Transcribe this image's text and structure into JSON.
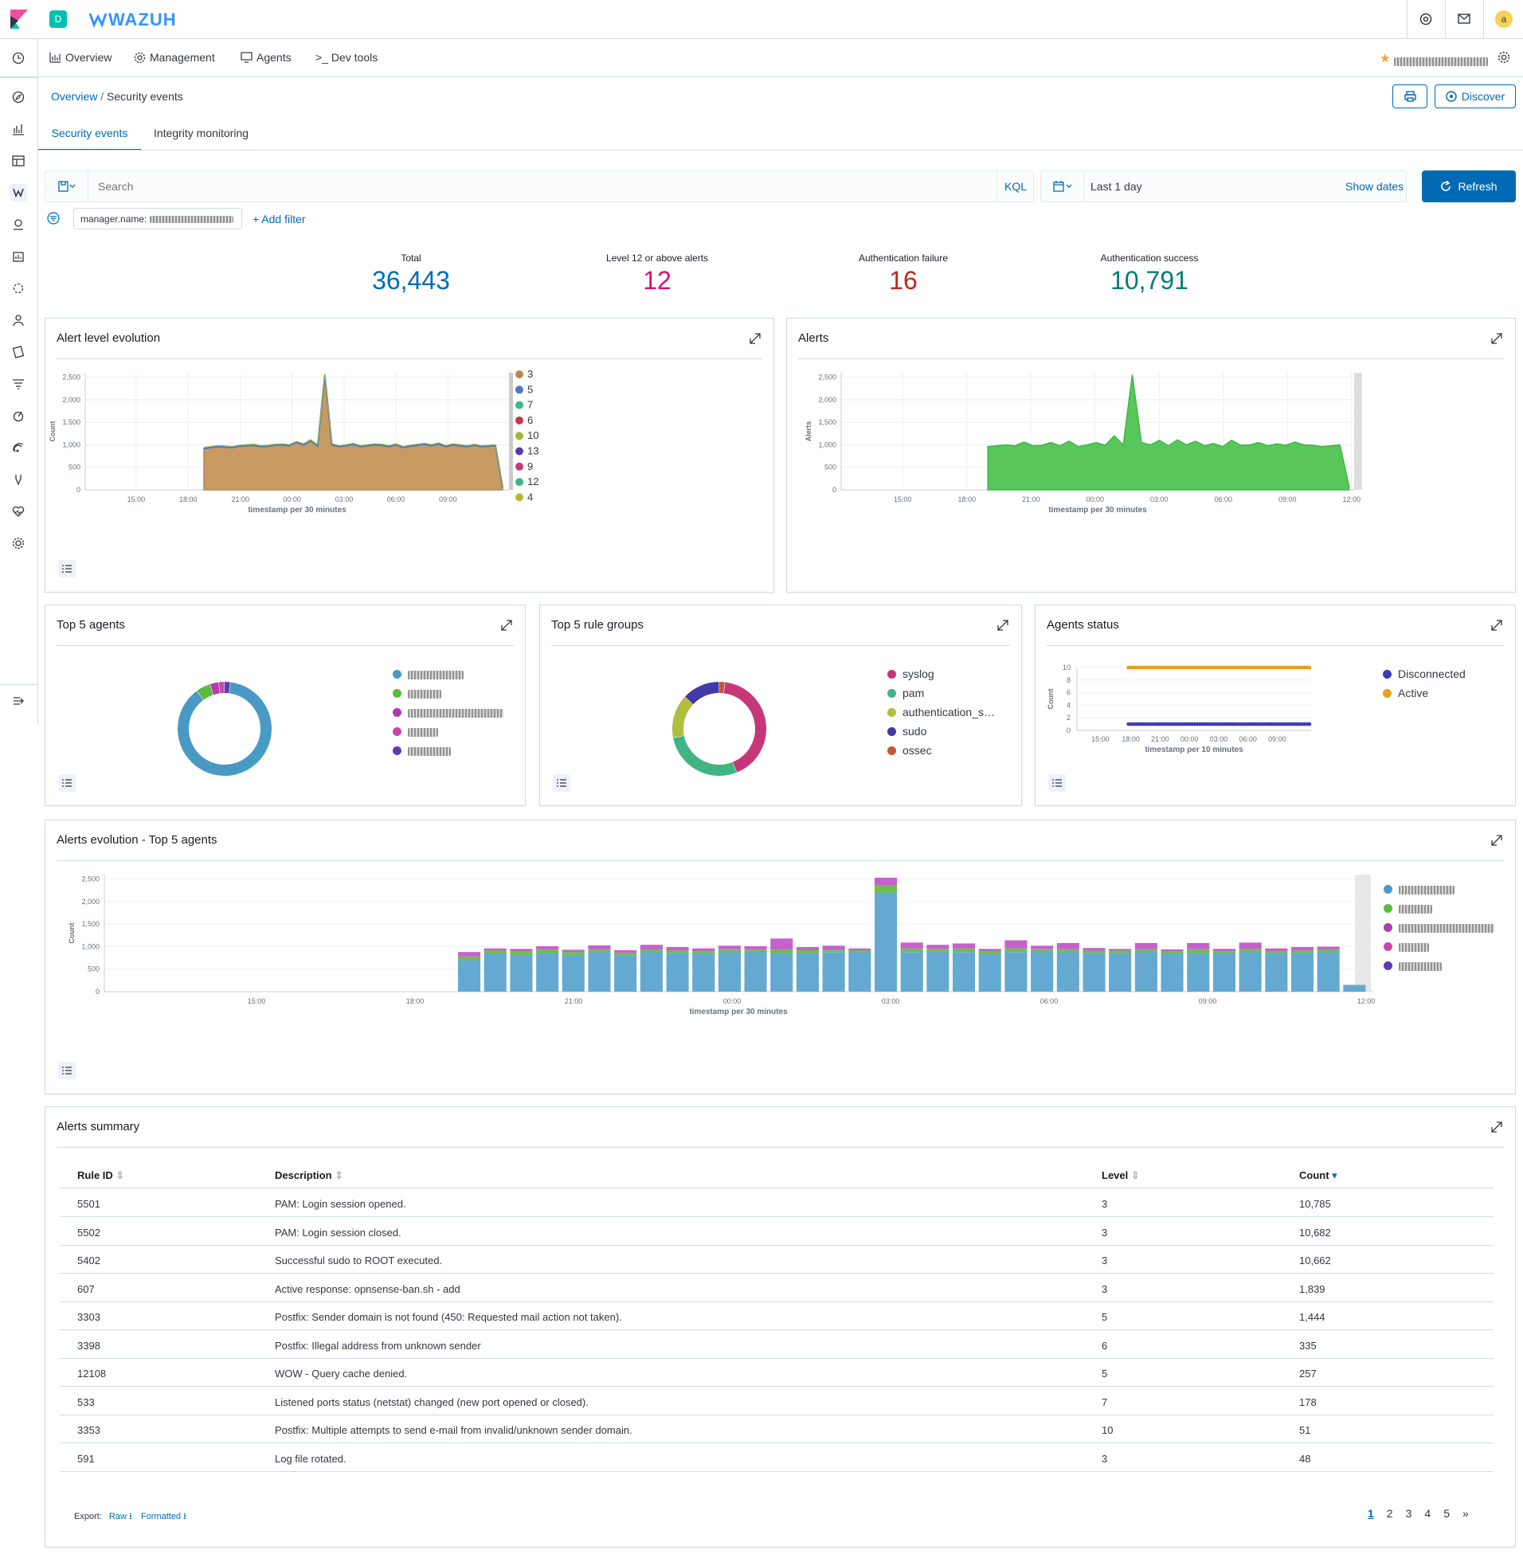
{
  "topbar": {
    "space_letter": "D",
    "logo_text": "WAZUH",
    "avatar_letter": "a"
  },
  "nav": {
    "items": [
      {
        "label": "Overview"
      },
      {
        "label": "Management"
      },
      {
        "label": "Agents"
      },
      {
        "label": ">_ Dev tools"
      }
    ]
  },
  "breadcrumb": {
    "parent": "Overview",
    "current": "Security events"
  },
  "actions": {
    "discover_label": "Discover"
  },
  "tabs": [
    {
      "label": "Security events",
      "active": true
    },
    {
      "label": "Integrity monitoring",
      "active": false
    }
  ],
  "search": {
    "placeholder": "Search",
    "kql": "KQL",
    "time_range": "Last 1 day",
    "show_dates": "Show dates",
    "refresh": "Refresh"
  },
  "filter": {
    "label": "manager.name:",
    "add_filter": "+ Add filter"
  },
  "stats": [
    {
      "label": "Total",
      "value": "36,443",
      "color": "#006bb4"
    },
    {
      "label": "Level 12 or above alerts",
      "value": "12",
      "color": "#dd0a73"
    },
    {
      "label": "Authentication failure",
      "value": "16",
      "color": "#bd271e"
    },
    {
      "label": "Authentication success",
      "value": "10,791",
      "color": "#017d73"
    }
  ],
  "panels": {
    "alert_level": {
      "title": "Alert level evolution"
    },
    "alerts": {
      "title": "Alerts"
    },
    "top_agents": {
      "title": "Top 5 agents"
    },
    "top_rules": {
      "title": "Top 5 rule groups"
    },
    "agents_status": {
      "title": "Agents status"
    },
    "alerts_evolution": {
      "title": "Alerts evolution - Top 5 agents"
    },
    "summary": {
      "title": "Alerts summary"
    }
  },
  "chart_data": [
    {
      "type": "area",
      "title": "Alert level evolution",
      "xlabel": "timestamp per 30 minutes",
      "ylabel": "Count",
      "ylim": [
        0,
        2600
      ],
      "yticks": [
        "2,500",
        "2,000",
        "1,500",
        "1,000",
        "500",
        "0"
      ],
      "xticks": [
        "15:00",
        "18:00",
        "21:00",
        "00:00",
        "03:00",
        "06:00",
        "09:00"
      ],
      "legend": [
        "3",
        "5",
        "7",
        "6",
        "10",
        "13",
        "9",
        "12",
        "4"
      ],
      "legend_colors": [
        "#b9894e",
        "#4b79c4",
        "#3cba91",
        "#c8374f",
        "#a2b83a",
        "#5a3aa8",
        "#c33c73",
        "#3fb58a",
        "#b6b838"
      ],
      "values": [
        920,
        940,
        960,
        950,
        940,
        970,
        980,
        990,
        960,
        970,
        990,
        1000,
        980,
        1050,
        1000,
        1090,
        980,
        2550,
        1000,
        960,
        980,
        1010,
        960,
        980,
        1000,
        990,
        960,
        1000,
        940,
        970,
        990,
        1010,
        980,
        1020,
        960,
        1000,
        980,
        960,
        990,
        960,
        970,
        980,
        60
      ]
    },
    {
      "type": "area",
      "title": "Alerts",
      "xlabel": "timestamp per 30 minutes",
      "ylabel": "Alerts",
      "ylim": [
        0,
        2600
      ],
      "yticks": [
        "2,500",
        "2,000",
        "1,500",
        "1,000",
        "500",
        "0"
      ],
      "xticks": [
        "15:00",
        "18:00",
        "21:00",
        "00:00",
        "03:00",
        "06:00",
        "09:00",
        "12:00"
      ],
      "values": [
        960,
        980,
        1000,
        980,
        1060,
        980,
        990,
        1050,
        980,
        1080,
        960,
        1000,
        1050,
        990,
        1200,
        1000,
        2560,
        1050,
        1000,
        1100,
        980,
        1110,
        1000,
        1080,
        980,
        1030,
        960,
        1100,
        990,
        1000,
        1050,
        980,
        1020,
        990,
        1060,
        1000,
        990,
        960,
        980,
        1000,
        80
      ]
    },
    {
      "type": "pie",
      "title": "Top 5 agents",
      "values": [
        88,
        5,
        3,
        2,
        2
      ],
      "colors": [
        "#4999c5",
        "#5cba3e",
        "#b03cb0",
        "#c748a9",
        "#5b3eb0"
      ]
    },
    {
      "type": "pie",
      "title": "Top 5 rule groups",
      "legend": [
        "syslog",
        "pam",
        "authentication_s…",
        "sudo",
        "ossec"
      ],
      "values": [
        42,
        28,
        15,
        13,
        2
      ],
      "colors": [
        "#c6377a",
        "#41b486",
        "#b1bd3c",
        "#4239a8",
        "#c25c2e"
      ]
    },
    {
      "type": "line",
      "title": "Agents status",
      "xlabel": "timestamp per 10 minutes",
      "ylabel": "Count",
      "ylim": [
        0,
        10
      ],
      "yticks": [
        "10",
        "8",
        "6",
        "4",
        "2",
        "0"
      ],
      "xticks": [
        "15:00",
        "18:00",
        "21:00",
        "00:00",
        "03:00",
        "06:00",
        "09:00"
      ],
      "series": [
        {
          "name": "Disconnected",
          "value": 1,
          "color": "#3d3bb5"
        },
        {
          "name": "Active",
          "value": 10,
          "color": "#e7a21f"
        }
      ]
    },
    {
      "type": "bar",
      "title": "Alerts evolution - Top 5 agents",
      "xlabel": "timestamp per 30 minutes",
      "ylabel": "Count",
      "ylim": [
        0,
        2600
      ],
      "yticks": [
        "2,500",
        "2,000",
        "1,500",
        "1,000",
        "500",
        "0"
      ],
      "xticks": [
        "15:00",
        "18:00",
        "21:00",
        "00:00",
        "03:00",
        "06:00",
        "09:00",
        "12:00"
      ],
      "colors": [
        "#64a9d1",
        "#6cc04a",
        "#c561cc"
      ],
      "stacks": [
        [
          700,
          80,
          100
        ],
        [
          850,
          60,
          50
        ],
        [
          820,
          70,
          60
        ],
        [
          860,
          80,
          70
        ],
        [
          820,
          60,
          50
        ],
        [
          880,
          60,
          90
        ],
        [
          800,
          60,
          60
        ],
        [
          880,
          60,
          100
        ],
        [
          860,
          50,
          80
        ],
        [
          850,
          50,
          60
        ],
        [
          880,
          60,
          80
        ],
        [
          880,
          60,
          70
        ],
        [
          860,
          80,
          240
        ],
        [
          860,
          60,
          70
        ],
        [
          880,
          50,
          90
        ],
        [
          880,
          40,
          40
        ],
        [
          2200,
          160,
          170
        ],
        [
          880,
          80,
          130
        ],
        [
          880,
          70,
          90
        ],
        [
          880,
          80,
          110
        ],
        [
          840,
          50,
          60
        ],
        [
          880,
          80,
          180
        ],
        [
          880,
          60,
          80
        ],
        [
          880,
          60,
          140
        ],
        [
          860,
          50,
          60
        ],
        [
          860,
          50,
          40
        ],
        [
          880,
          60,
          140
        ],
        [
          840,
          50,
          50
        ],
        [
          860,
          80,
          140
        ],
        [
          860,
          40,
          50
        ],
        [
          880,
          70,
          140
        ],
        [
          860,
          40,
          60
        ],
        [
          860,
          50,
          80
        ],
        [
          880,
          60,
          60
        ],
        [
          150,
          0,
          0
        ]
      ]
    }
  ],
  "table": {
    "headers": [
      "Rule ID",
      "Description",
      "Level",
      "Count"
    ],
    "rows": [
      [
        "5501",
        "PAM: Login session opened.",
        "3",
        "10,785"
      ],
      [
        "5502",
        "PAM: Login session closed.",
        "3",
        "10,682"
      ],
      [
        "5402",
        "Successful sudo to ROOT executed.",
        "3",
        "10,662"
      ],
      [
        "607",
        "Active response: opnsense-ban.sh - add",
        "3",
        "1,839"
      ],
      [
        "3303",
        "Postfix: Sender domain is not found (450: Requested mail action not taken).",
        "5",
        "1,444"
      ],
      [
        "3398",
        "Postfix: Illegal address from unknown sender",
        "6",
        "335"
      ],
      [
        "12108",
        "WOW - Query cache denied.",
        "5",
        "257"
      ],
      [
        "533",
        "Listened ports status (netstat) changed (new port opened or closed).",
        "7",
        "178"
      ],
      [
        "3353",
        "Postfix: Multiple attempts to send e-mail from invalid/unknown sender domain.",
        "10",
        "51"
      ],
      [
        "591",
        "Log file rotated.",
        "3",
        "48"
      ]
    ]
  },
  "export": {
    "label": "Export:",
    "raw": "Raw",
    "formatted": "Formatted"
  },
  "pagination": {
    "pages": [
      "1",
      "2",
      "3",
      "4",
      "5"
    ],
    "next": "»"
  }
}
